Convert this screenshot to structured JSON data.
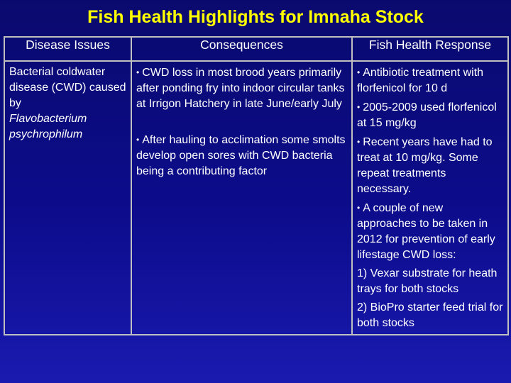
{
  "title": "Fish Health Highlights for Imnaha Stock",
  "table": {
    "headers": {
      "issues": "Disease Issues",
      "consequences": "Consequences",
      "response": "Fish Health Response"
    },
    "issue": {
      "line1": "Bacterial coldwater disease (CWD) caused by",
      "organism_line1": "Flavobacterium",
      "organism_line2": "psychrophilum"
    },
    "consequences": [
      "CWD loss in most brood years primarily after ponding fry into indoor circular tanks at Irrigon Hatchery in late June/early July",
      "After hauling to acclimation some smolts develop open sores with CWD bacteria being a contributing factor"
    ],
    "responses": [
      "Antibiotic treatment with florfenicol for 10 d",
      "2005-2009 used florfenicol at 15 mg/kg",
      "Recent years have had to treat at 10 mg/kg. Some repeat treatments necessary.",
      "A couple of new approaches to be taken in 2012 for prevention of early lifestage CWD loss:"
    ],
    "numbered": [
      "1) Vexar substrate for heath trays for both stocks",
      "2) BioPro starter feed trial for both stocks"
    ],
    "bullet_glyph": "•"
  }
}
